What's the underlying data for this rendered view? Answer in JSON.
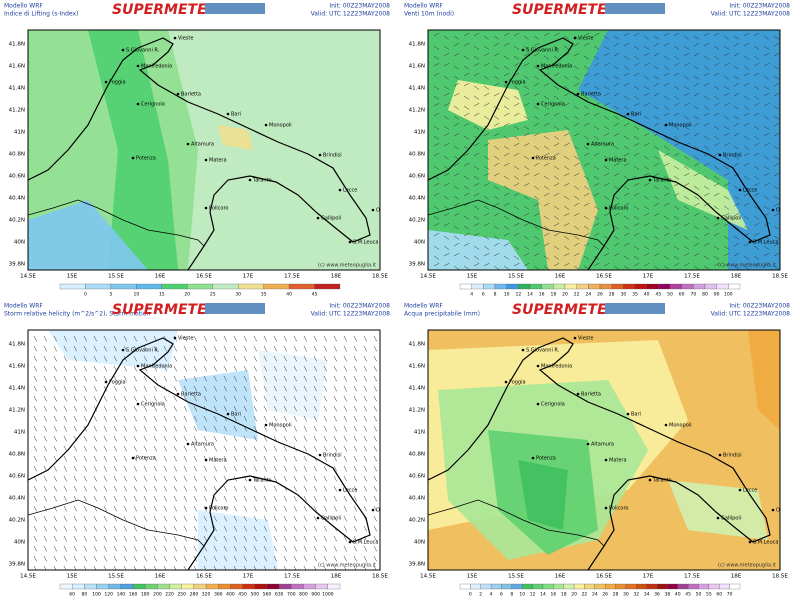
{
  "brand": "SUPERMETEO",
  "model": "Modello WRF",
  "init": "Init: 00Z23MAY2008",
  "valid": "Valid: UTC 12Z23MAY2008",
  "credit": "(c) www.meteopuglia.it",
  "lat_labels": [
    "41.8N",
    "41.6N",
    "41.4N",
    "41.2N",
    "41N",
    "40.8N",
    "40.6N",
    "40.4N",
    "40.2N",
    "40N",
    "39.8N"
  ],
  "lon_labels": [
    "14.5E",
    "15E",
    "15.5E",
    "16E",
    "16.5E",
    "17E",
    "17.5E",
    "18E",
    "18.5E"
  ],
  "cities": [
    "Vieste",
    "S.Giovanni R.",
    "Manfredonia",
    "Foggia",
    "Cerignola",
    "Barletta",
    "Bari",
    "Monopoli",
    "Altamura",
    "Matera",
    "Potenza",
    "Brindisi",
    "Taranto",
    "Lecce",
    "Gallipoli",
    "Policoro",
    "Otranto",
    "S.M.Leuca"
  ],
  "panels": [
    {
      "title": "Indice di Lifting (s-Index)",
      "scale": [
        "0",
        "5",
        "10",
        "15",
        "20",
        "25",
        "30",
        "35",
        "40",
        "45"
      ],
      "colors": [
        "#d8f0ff",
        "#a8dcf8",
        "#7ec8f0",
        "#5fb8e8",
        "#4fd070",
        "#8fe090",
        "#c0eac0",
        "#f0e090",
        "#f0b050",
        "#e06030",
        "#c02020"
      ]
    },
    {
      "title": "Venti 10m (nodi)",
      "scale": [
        "4",
        "6",
        "8",
        "10",
        "12",
        "14",
        "16",
        "18",
        "20",
        "22",
        "24",
        "26",
        "28",
        "30",
        "35",
        "40",
        "45",
        "50",
        "60",
        "70",
        "80",
        "90",
        "100"
      ],
      "colors": [
        "#ffffff",
        "#d8f0ff",
        "#a8dcf8",
        "#6cb8f0",
        "#3c98e0",
        "#30b060",
        "#50c870",
        "#90e090",
        "#c8f0a0",
        "#f8f0a0",
        "#f0d080",
        "#f0b060",
        "#e89040",
        "#e06020",
        "#d03010",
        "#c01010",
        "#a00020",
        "#900060",
        "#b040a0",
        "#c070c0",
        "#d0a0e0",
        "#e0c0f0",
        "#f0e0ff",
        "#ffffff"
      ]
    },
    {
      "title": "Storm relative helicity (m^2/s^2), Storm motion",
      "scale": [
        "60",
        "80",
        "100",
        "120",
        "140",
        "160",
        "180",
        "200",
        "220",
        "250",
        "280",
        "320",
        "360",
        "400",
        "450",
        "500",
        "560",
        "630",
        "700",
        "800",
        "900",
        "1000"
      ],
      "colors": [
        "#f0f8ff",
        "#d8f0ff",
        "#b8e0f8",
        "#98d0f0",
        "#70b8e8",
        "#50a0e0",
        "#40c060",
        "#70d070",
        "#a0e090",
        "#d0f0a0",
        "#f8f0a0",
        "#f0d080",
        "#f0b050",
        "#e89030",
        "#e06020",
        "#d03010",
        "#b01010",
        "#900030",
        "#a04090",
        "#c070c0",
        "#d8a0e0",
        "#e8c8f0",
        "#f8f0ff"
      ]
    },
    {
      "title": "Acqua precipitabile (mm)",
      "scale": [
        "0",
        "2",
        "4",
        "6",
        "8",
        "10",
        "12",
        "14",
        "16",
        "18",
        "20",
        "22",
        "24",
        "26",
        "28",
        "30",
        "32",
        "34",
        "36",
        "38",
        "40",
        "45",
        "50",
        "55",
        "60",
        "70"
      ],
      "colors": [
        "#ffffff",
        "#e0f0ff",
        "#c0e0f8",
        "#a0d0f0",
        "#80c0e8",
        "#60a8e0",
        "#40c060",
        "#60d070",
        "#80e080",
        "#a8e898",
        "#d0f0b0",
        "#f8f0a0",
        "#f0d880",
        "#f0c060",
        "#f0a840",
        "#e89030",
        "#e07020",
        "#d05010",
        "#c03010",
        "#a01010",
        "#900040",
        "#a04090",
        "#c070c0",
        "#d8a0e0",
        "#e8c8f0",
        "#f0e0ff",
        "#ffffff"
      ]
    }
  ]
}
